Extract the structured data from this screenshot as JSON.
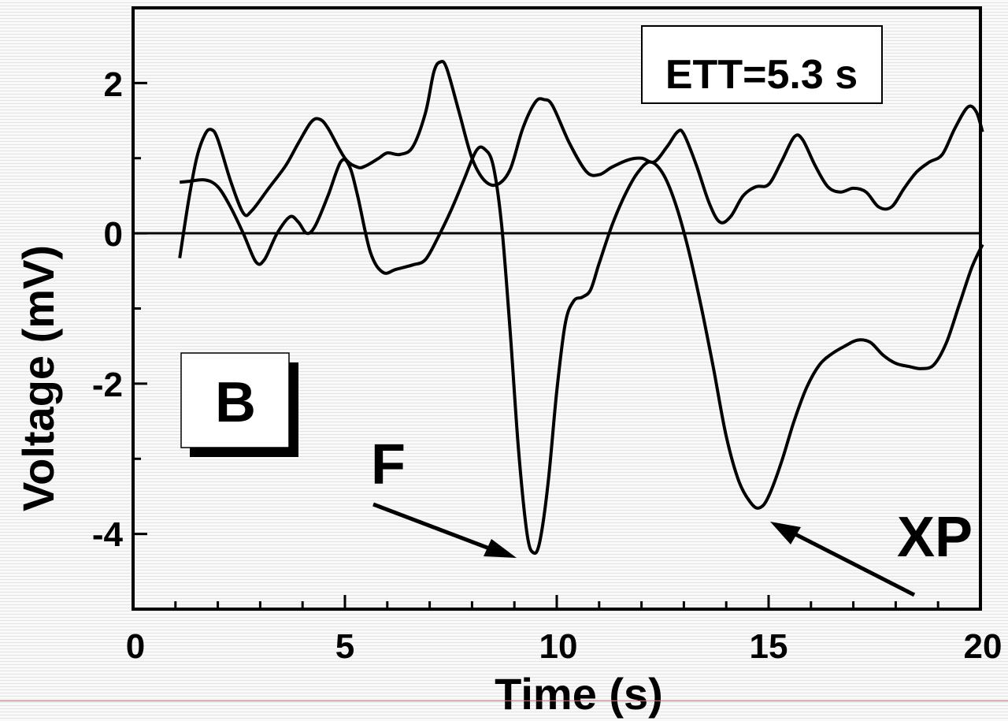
{
  "chart_data": {
    "type": "line",
    "title": "",
    "xlabel": "Time (s)",
    "ylabel": "Voltage (mV)",
    "xlim": [
      0,
      20
    ],
    "ylim": [
      -5,
      3
    ],
    "xticks": [
      "0",
      "5",
      "10",
      "15",
      "20"
    ],
    "yticks": [
      "2",
      "0",
      "-2",
      "-4"
    ],
    "grid": false,
    "series": [
      {
        "points": [
          [
            1.1,
            -0.33
          ],
          [
            1.3,
            0.4
          ],
          [
            1.5,
            1.0
          ],
          [
            1.7,
            1.32
          ],
          [
            1.85,
            1.38
          ],
          [
            2.0,
            1.25
          ],
          [
            2.3,
            0.7
          ],
          [
            2.6,
            0.27
          ],
          [
            2.8,
            0.3
          ],
          [
            3.2,
            0.6
          ],
          [
            3.6,
            0.9
          ],
          [
            3.9,
            1.2
          ],
          [
            4.2,
            1.48
          ],
          [
            4.4,
            1.52
          ],
          [
            4.6,
            1.4
          ],
          [
            5.0,
            1.0
          ],
          [
            5.3,
            0.88
          ],
          [
            5.5,
            0.9
          ],
          [
            5.8,
            1.0
          ],
          [
            6.0,
            1.07
          ],
          [
            6.3,
            1.05
          ],
          [
            6.6,
            1.15
          ],
          [
            6.9,
            1.6
          ],
          [
            7.1,
            2.15
          ],
          [
            7.25,
            2.28
          ],
          [
            7.4,
            2.2
          ],
          [
            7.7,
            1.6
          ],
          [
            8.0,
            1.0
          ],
          [
            8.3,
            0.7
          ],
          [
            8.6,
            0.65
          ],
          [
            8.9,
            0.85
          ],
          [
            9.2,
            1.4
          ],
          [
            9.5,
            1.75
          ],
          [
            9.7,
            1.78
          ],
          [
            9.9,
            1.7
          ],
          [
            10.3,
            1.2
          ],
          [
            10.7,
            0.82
          ],
          [
            11.0,
            0.78
          ],
          [
            11.3,
            0.88
          ],
          [
            11.7,
            0.98
          ],
          [
            12.0,
            1.0
          ],
          [
            12.3,
            0.95
          ],
          [
            12.6,
            1.15
          ],
          [
            12.85,
            1.35
          ],
          [
            13.0,
            1.32
          ],
          [
            13.3,
            0.9
          ],
          [
            13.6,
            0.4
          ],
          [
            13.85,
            0.15
          ],
          [
            14.1,
            0.22
          ],
          [
            14.4,
            0.5
          ],
          [
            14.7,
            0.62
          ],
          [
            15.0,
            0.65
          ],
          [
            15.3,
            0.95
          ],
          [
            15.6,
            1.28
          ],
          [
            15.8,
            1.25
          ],
          [
            16.1,
            0.9
          ],
          [
            16.4,
            0.62
          ],
          [
            16.7,
            0.55
          ],
          [
            17.0,
            0.6
          ],
          [
            17.3,
            0.55
          ],
          [
            17.6,
            0.35
          ],
          [
            17.9,
            0.35
          ],
          [
            18.2,
            0.6
          ],
          [
            18.5,
            0.82
          ],
          [
            18.8,
            0.95
          ],
          [
            19.1,
            1.05
          ],
          [
            19.4,
            1.4
          ],
          [
            19.7,
            1.68
          ],
          [
            19.9,
            1.62
          ],
          [
            20.05,
            1.35
          ]
        ]
      },
      {
        "points": [
          [
            1.1,
            0.68
          ],
          [
            1.3,
            0.69
          ],
          [
            1.7,
            0.71
          ],
          [
            2.0,
            0.62
          ],
          [
            2.3,
            0.35
          ],
          [
            2.6,
            0.0
          ],
          [
            2.9,
            -0.38
          ],
          [
            3.1,
            -0.35
          ],
          [
            3.4,
            0.0
          ],
          [
            3.7,
            0.22
          ],
          [
            3.9,
            0.15
          ],
          [
            4.1,
            0.0
          ],
          [
            4.3,
            0.1
          ],
          [
            4.6,
            0.5
          ],
          [
            4.9,
            0.95
          ],
          [
            5.1,
            0.9
          ],
          [
            5.3,
            0.5
          ],
          [
            5.6,
            -0.25
          ],
          [
            5.9,
            -0.52
          ],
          [
            6.2,
            -0.48
          ],
          [
            6.6,
            -0.42
          ],
          [
            6.9,
            -0.35
          ],
          [
            7.2,
            -0.05
          ],
          [
            7.5,
            0.3
          ],
          [
            7.8,
            0.7
          ],
          [
            8.1,
            1.1
          ],
          [
            8.3,
            1.12
          ],
          [
            8.5,
            0.9
          ],
          [
            8.7,
            0.1
          ],
          [
            8.9,
            -1.3
          ],
          [
            9.1,
            -2.9
          ],
          [
            9.3,
            -4.0
          ],
          [
            9.45,
            -4.25
          ],
          [
            9.6,
            -4.1
          ],
          [
            9.8,
            -3.3
          ],
          [
            10.0,
            -2.1
          ],
          [
            10.2,
            -1.2
          ],
          [
            10.4,
            -0.9
          ],
          [
            10.6,
            -0.85
          ],
          [
            10.8,
            -0.75
          ],
          [
            11.0,
            -0.4
          ],
          [
            11.3,
            0.1
          ],
          [
            11.6,
            0.5
          ],
          [
            11.9,
            0.8
          ],
          [
            12.2,
            0.95
          ],
          [
            12.5,
            0.8
          ],
          [
            12.8,
            0.4
          ],
          [
            13.1,
            -0.2
          ],
          [
            13.4,
            -0.95
          ],
          [
            13.7,
            -1.8
          ],
          [
            14.0,
            -2.7
          ],
          [
            14.3,
            -3.3
          ],
          [
            14.6,
            -3.6
          ],
          [
            14.8,
            -3.65
          ],
          [
            15.0,
            -3.5
          ],
          [
            15.3,
            -3.05
          ],
          [
            15.6,
            -2.5
          ],
          [
            15.9,
            -2.05
          ],
          [
            16.2,
            -1.75
          ],
          [
            16.5,
            -1.6
          ],
          [
            16.8,
            -1.5
          ],
          [
            17.1,
            -1.42
          ],
          [
            17.4,
            -1.45
          ],
          [
            17.7,
            -1.62
          ],
          [
            18.0,
            -1.73
          ],
          [
            18.3,
            -1.77
          ],
          [
            18.6,
            -1.8
          ],
          [
            18.9,
            -1.75
          ],
          [
            19.2,
            -1.45
          ],
          [
            19.5,
            -0.95
          ],
          [
            19.8,
            -0.45
          ],
          [
            20.05,
            -0.15
          ]
        ]
      }
    ],
    "annotations": {
      "panel_label": "B",
      "ett_label": "ETT=5.3 s",
      "f_label": "F",
      "xp_label": "XP"
    }
  }
}
